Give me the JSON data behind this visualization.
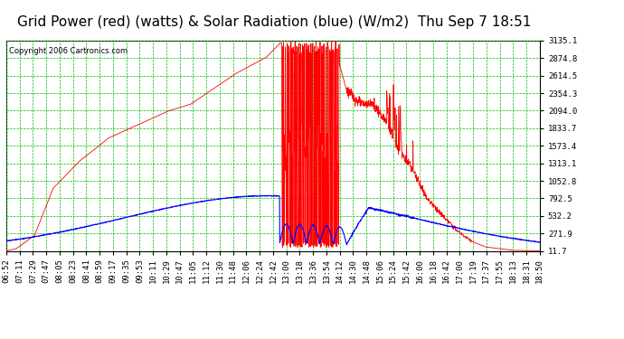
{
  "title": "Grid Power (red) (watts) & Solar Radiation (blue) (W/m2)  Thu Sep 7 18:51",
  "copyright": "Copyright 2006 Cartronics.com",
  "background_color": "#ffffff",
  "plot_bg_color": "#ffffff",
  "grid_color": "#00bb00",
  "y_ticks": [
    11.7,
    271.9,
    532.2,
    792.5,
    1052.8,
    1313.1,
    1573.4,
    1833.7,
    2094.0,
    2354.3,
    2614.5,
    2874.8,
    3135.1
  ],
  "y_min": 11.7,
  "y_max": 3135.1,
  "x_labels": [
    "06:52",
    "07:11",
    "07:29",
    "07:47",
    "08:05",
    "08:23",
    "08:41",
    "08:59",
    "09:17",
    "09:35",
    "09:53",
    "10:11",
    "10:29",
    "10:47",
    "11:05",
    "11:12",
    "11:30",
    "11:48",
    "12:06",
    "12:24",
    "12:42",
    "13:00",
    "13:18",
    "13:36",
    "13:54",
    "14:12",
    "14:30",
    "14:48",
    "15:06",
    "15:24",
    "15:42",
    "16:00",
    "16:18",
    "16:42",
    "17:00",
    "17:19",
    "17:37",
    "17:55",
    "18:13",
    "18:31",
    "18:50"
  ],
  "red_color": "#ff0000",
  "blue_color": "#0000ff",
  "title_fontsize": 11,
  "copyright_fontsize": 6,
  "tick_fontsize": 6.5
}
